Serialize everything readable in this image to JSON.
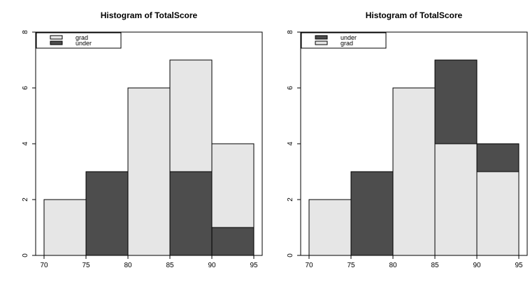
{
  "colors": {
    "grad": "#e6e6e6",
    "under": "#4d4d4d",
    "axis": "#000000",
    "background": "#ffffff"
  },
  "chart_data": [
    {
      "type": "bar",
      "title": "Histogram of TotalScore",
      "xlabel": "",
      "ylabel": "",
      "xlim": [
        70,
        95
      ],
      "ylim": [
        0,
        8
      ],
      "x_ticks": [
        "70",
        "75",
        "80",
        "85",
        "90",
        "95"
      ],
      "y_ticks": [
        "0",
        "2",
        "4",
        "6",
        "8"
      ],
      "bins": [
        [
          70,
          75
        ],
        [
          75,
          80
        ],
        [
          80,
          85
        ],
        [
          85,
          90
        ],
        [
          90,
          95
        ]
      ],
      "grid": false,
      "legend_position": "top-left",
      "legend": [
        {
          "label": "grad",
          "color": "#e6e6e6"
        },
        {
          "label": "under",
          "color": "#4d4d4d"
        }
      ],
      "series": [
        {
          "name": "grad",
          "values": [
            2,
            0,
            6,
            7,
            4
          ]
        },
        {
          "name": "under",
          "values": [
            0,
            3,
            0,
            3,
            1
          ]
        }
      ],
      "draw_order": [
        "grad",
        "under"
      ],
      "stacked": false
    },
    {
      "type": "bar",
      "title": "Histogram of TotalScore",
      "xlabel": "",
      "ylabel": "",
      "xlim": [
        70,
        95
      ],
      "ylim": [
        0,
        8
      ],
      "x_ticks": [
        "70",
        "75",
        "80",
        "85",
        "90",
        "95"
      ],
      "y_ticks": [
        "0",
        "2",
        "4",
        "6",
        "8"
      ],
      "bins": [
        [
          70,
          75
        ],
        [
          75,
          80
        ],
        [
          80,
          85
        ],
        [
          85,
          90
        ],
        [
          90,
          95
        ]
      ],
      "grid": false,
      "legend_position": "top-left",
      "legend": [
        {
          "label": "under",
          "color": "#4d4d4d"
        },
        {
          "label": "grad",
          "color": "#e6e6e6"
        }
      ],
      "series": [
        {
          "name": "under",
          "values": [
            0,
            3,
            0,
            7,
            4
          ]
        },
        {
          "name": "grad",
          "values": [
            2,
            0,
            6,
            4,
            3
          ]
        }
      ],
      "draw_order": [
        "under",
        "grad"
      ],
      "stacked": false
    }
  ]
}
